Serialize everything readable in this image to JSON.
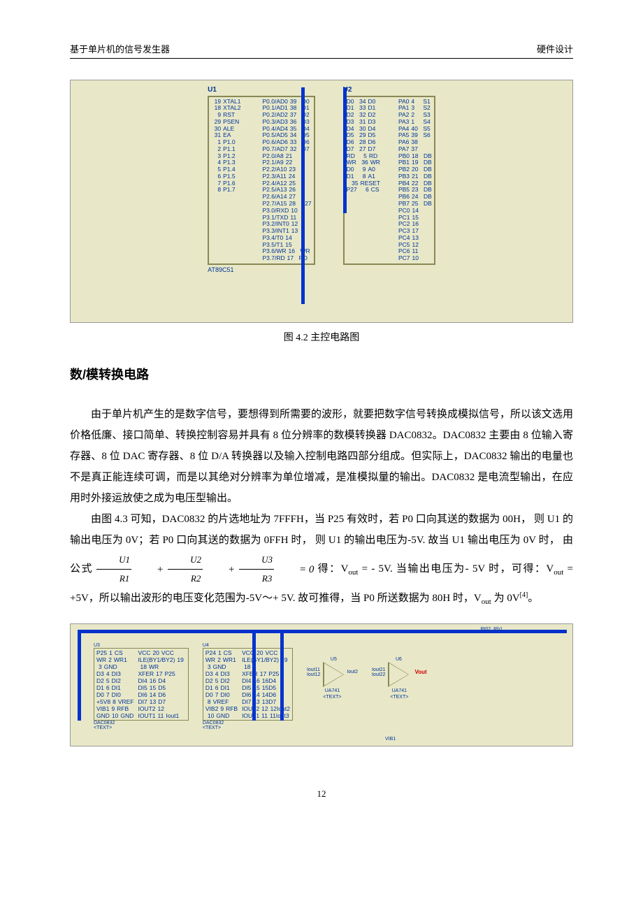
{
  "header": {
    "left": "基于单片机的信号发生器",
    "right": "硬件设计"
  },
  "schematic1": {
    "bg_color": "#e8e8c8",
    "wire_color": "#003399",
    "border_color": "#888855",
    "bus_color": "#0033cc",
    "U1": {
      "title": "U1",
      "footer": "AT89C51",
      "left": [
        {
          "num": "19",
          "name": "XTAL1",
          "ext": "X1"
        },
        {
          "num": "18",
          "name": "XTAL2",
          "ext": "<TEXT>"
        },
        {
          "num": "",
          "name": "",
          "ext": ""
        },
        {
          "num": "9",
          "name": "RST",
          "ext": "RESET"
        },
        {
          "num": "",
          "name": "",
          "ext": ""
        },
        {
          "num": "29",
          "name": "PSEN",
          "ext": ""
        },
        {
          "num": "30",
          "name": "ALE",
          "ext": ""
        },
        {
          "num": "31",
          "name": "EA",
          "ext": ""
        },
        {
          "num": "",
          "name": "",
          "ext": ""
        },
        {
          "num": "1",
          "name": "P1.0",
          "ext": ""
        },
        {
          "num": "2",
          "name": "P1.1",
          "ext": ""
        },
        {
          "num": "3",
          "name": "P1.2",
          "ext": "XT"
        },
        {
          "num": "4",
          "name": "P1.3",
          "ext": ""
        },
        {
          "num": "5",
          "name": "P1.4",
          "ext": ""
        },
        {
          "num": "6",
          "name": "P1.5",
          "ext": ""
        },
        {
          "num": "7",
          "name": "P1.6",
          "ext": ""
        },
        {
          "num": "8",
          "name": "P1.7",
          "ext": ""
        }
      ],
      "right": [
        {
          "name": "P0.0/AD0",
          "num": "39",
          "net": "D0"
        },
        {
          "name": "P0.1/AD1",
          "num": "38",
          "net": "D1"
        },
        {
          "name": "P0.2/AD2",
          "num": "37",
          "net": "D2"
        },
        {
          "name": "P0.3/AD3",
          "num": "36",
          "net": "D3"
        },
        {
          "name": "P0.4/AD4",
          "num": "35",
          "net": "D4"
        },
        {
          "name": "P0.5/AD5",
          "num": "34",
          "net": "D5"
        },
        {
          "name": "P0.6/AD6",
          "num": "33",
          "net": "D6"
        },
        {
          "name": "P0.7/AD7",
          "num": "32",
          "net": "D7"
        },
        {
          "name": "",
          "num": "",
          "net": ""
        },
        {
          "name": "P2.0/A8",
          "num": "21",
          "net": ""
        },
        {
          "name": "P2.1/A9",
          "num": "22",
          "net": ""
        },
        {
          "name": "P2.2/A10",
          "num": "23",
          "net": ""
        },
        {
          "name": "P2.3/A11",
          "num": "24",
          "net": ""
        },
        {
          "name": "P2.4/A12",
          "num": "25",
          "net": ""
        },
        {
          "name": "P2.5/A13",
          "num": "26",
          "net": ""
        },
        {
          "name": "P2.6/A14",
          "num": "27",
          "net": ""
        },
        {
          "name": "P2.7/A15",
          "num": "28",
          "net": "P27"
        },
        {
          "name": "",
          "num": "",
          "net": ""
        },
        {
          "name": "P3.0/RXD",
          "num": "10",
          "net": ""
        },
        {
          "name": "P3.1/TXD",
          "num": "11",
          "net": ""
        },
        {
          "name": "P3.2/INT0",
          "num": "12",
          "net": ""
        },
        {
          "name": "P3.3/INT1",
          "num": "13",
          "net": ""
        },
        {
          "name": "P3.4/T0",
          "num": "14",
          "net": ""
        },
        {
          "name": "P3.5/T1",
          "num": "15",
          "net": ""
        },
        {
          "name": "P3.6/WR",
          "num": "16",
          "net": "WR"
        },
        {
          "name": "P3.7/RD",
          "num": "17",
          "net": "RD"
        }
      ]
    },
    "U2": {
      "title": "U2",
      "left": [
        {
          "net": "D0",
          "num": "34",
          "name": "D0"
        },
        {
          "net": "D1",
          "num": "33",
          "name": "D1"
        },
        {
          "net": "D2",
          "num": "32",
          "name": "D2"
        },
        {
          "net": "D3",
          "num": "31",
          "name": "D3"
        },
        {
          "net": "D4",
          "num": "30",
          "name": "D4"
        },
        {
          "net": "D5",
          "num": "29",
          "name": "D5"
        },
        {
          "net": "D6",
          "num": "28",
          "name": "D6"
        },
        {
          "net": "D7",
          "num": "27",
          "name": "D7"
        },
        {
          "net": "",
          "num": "",
          "name": ""
        },
        {
          "net": "RD",
          "num": "5",
          "name": "RD"
        },
        {
          "net": "WR",
          "num": "36",
          "name": "WR"
        },
        {
          "net": "D0",
          "num": "9",
          "name": "A0"
        },
        {
          "net": "D1",
          "num": "8",
          "name": "A1"
        },
        {
          "net": "",
          "num": "35",
          "name": "RESET"
        },
        {
          "net": "",
          "num": "",
          "name": ""
        },
        {
          "net": "P27",
          "num": "6",
          "name": "CS"
        }
      ],
      "right": [
        {
          "name": "PA0",
          "num": "4",
          "net": "S1"
        },
        {
          "name": "PA1",
          "num": "3",
          "net": "S2"
        },
        {
          "name": "PA2",
          "num": "2",
          "net": "S3"
        },
        {
          "name": "PA3",
          "num": "1",
          "net": "S4"
        },
        {
          "name": "PA4",
          "num": "40",
          "net": "S5"
        },
        {
          "name": "PA5",
          "num": "39",
          "net": "S6"
        },
        {
          "name": "PA6",
          "num": "38",
          "net": ""
        },
        {
          "name": "PA7",
          "num": "37",
          "net": ""
        },
        {
          "name": "",
          "num": "",
          "net": ""
        },
        {
          "name": "PB0",
          "num": "18",
          "net": "DB"
        },
        {
          "name": "PB1",
          "num": "19",
          "net": "DB"
        },
        {
          "name": "PB2",
          "num": "20",
          "net": "DB"
        },
        {
          "name": "PB3",
          "num": "21",
          "net": "DB"
        },
        {
          "name": "PB4",
          "num": "22",
          "net": "DB"
        },
        {
          "name": "PB5",
          "num": "23",
          "net": "DB"
        },
        {
          "name": "PB6",
          "num": "24",
          "net": "DB"
        },
        {
          "name": "PB7",
          "num": "25",
          "net": "DB"
        },
        {
          "name": "",
          "num": "",
          "net": ""
        },
        {
          "name": "PC0",
          "num": "14",
          "net": ""
        },
        {
          "name": "PC1",
          "num": "15",
          "net": ""
        },
        {
          "name": "PC2",
          "num": "16",
          "net": ""
        },
        {
          "name": "PC3",
          "num": "17",
          "net": ""
        },
        {
          "name": "PC4",
          "num": "13",
          "net": ""
        },
        {
          "name": "PC5",
          "num": "12",
          "net": ""
        },
        {
          "name": "PC6",
          "num": "11",
          "net": ""
        },
        {
          "name": "PC7",
          "num": "10",
          "net": ""
        }
      ]
    }
  },
  "caption1": "图 4.2   主控电路图",
  "section_title": "数/模转换电路",
  "para1": "由于单片机产生的是数字信号，要想得到所需要的波形，就要把数字信号转换成模拟信号，所以该文选用价格低廉、接口简单、转换控制容易并具有 8 位分辨率的数模转换器 DAC0832。DAC0832 主要由 8 位输入寄存器、8 位 DAC 寄存器、8 位 D/A 转换器以及输入控制电路四部分组成。但实际上，DAC0832 输出的电量也不是真正能连续可调，而是以其绝对分辨率为单位增减，是准模拟量的输出。DAC0832 是电流型输出，在应用时外接运放使之成为电压型输出。",
  "para2_a": "由图 4.3 可知，DAC0832 的片选地址为 7FFFH，当 P25 有效时，若 P0 口向其送的数据为 00H，  则 U1  的输出电压为 0V；若 P0 口向其送的数据为 0FFH 时，  则 U1 的输出电压为-5V.  故当 U1  输出电压为 0V 时，  由公式  ",
  "para2_b": "  得：V",
  "para2_c": " = - 5V. 当输出电压为- 5V 时，可得：V",
  "para2_d": " = +5V，所以输出波形的电压变化范围为-5V～+ 5V.  故可推得，当 P0 所送数据为 80H 时，V",
  "para2_e": " 为 0V",
  "para2_f": "。",
  "formula": {
    "t1": "U1",
    "b1": "R1",
    "t2": "U2",
    "b2": "R2",
    "t3": "U3",
    "b3": "R3",
    "eq": "= 0"
  },
  "ref": "[4]",
  "schematic2": {
    "u3_title": "U3",
    "u4_title": "U4",
    "u5_title": "U5",
    "u6_title": "U6",
    "dac_footer": "DAC0832",
    "rt": "Rt02",
    "rb": "Rb1",
    "dac_left": [
      {
        "a": "P25",
        "b": "1",
        "c": "CS",
        "d": "VCC",
        "e": "20",
        "f": "VCC"
      },
      {
        "a": "WR",
        "b": "2",
        "c": "WR1",
        "d": "ILE(BY1/BY2)",
        "e": "19",
        "f": ""
      },
      {
        "a": "",
        "b": "3",
        "c": "GND",
        "d": "",
        "e": "18",
        "f": "WR"
      },
      {
        "a": "D3",
        "b": "4",
        "c": "DI3",
        "d": "XFER",
        "e": "17",
        "f": "P25"
      },
      {
        "a": "D2",
        "b": "5",
        "c": "DI2",
        "d": "DI4",
        "e": "16",
        "f": "D4"
      },
      {
        "a": "D1",
        "b": "6",
        "c": "DI1",
        "d": "DI5",
        "e": "15",
        "f": "D5"
      },
      {
        "a": "D0",
        "b": "7",
        "c": "DI0",
        "d": "DI6",
        "e": "14",
        "f": "D6"
      },
      {
        "a": "+5V8",
        "b": "8",
        "c": "VREF",
        "d": "DI7",
        "e": "13",
        "f": "D7"
      },
      {
        "a": "VIB1",
        "b": "9",
        "c": "RFB",
        "d": "IOUT2",
        "e": "12",
        "f": ""
      },
      {
        "a": "GND",
        "b": "10",
        "c": "GND",
        "d": "IOUT1",
        "e": "11",
        "f": "Iout1"
      }
    ],
    "u4_left": [
      {
        "a": "P24",
        "b": "1",
        "c": "CS",
        "d": "VCC",
        "e": "20",
        "f": "VCC"
      },
      {
        "a": "WR",
        "b": "2",
        "c": "WR1",
        "d": "ILE(BY1/BY2)",
        "e": "19",
        "f": ""
      },
      {
        "a": "",
        "b": "3",
        "c": "GND",
        "d": "",
        "e": "18",
        "f": ""
      },
      {
        "a": "D3",
        "b": "4",
        "c": "DI3",
        "d": "XFER",
        "e": "17",
        "f": "P25"
      },
      {
        "a": "D2",
        "b": "5",
        "c": "DI2",
        "d": "DI4",
        "e": "16",
        "f": "16D4"
      },
      {
        "a": "D1",
        "b": "6",
        "c": "DI1",
        "d": "DI5",
        "e": "15",
        "f": "15D5"
      },
      {
        "a": "D0",
        "b": "7",
        "c": "DI0",
        "d": "DI6",
        "e": "14",
        "f": "14D6"
      },
      {
        "a": "",
        "b": "8",
        "c": "VREF",
        "d": "DI7",
        "e": "13",
        "f": "13D7"
      },
      {
        "a": "VIB2",
        "b": "9",
        "c": "RFB",
        "d": "IOUT2",
        "e": "12",
        "f": "12Iout2"
      },
      {
        "a": "",
        "b": "10",
        "c": "GND",
        "d": "IOUT1",
        "e": "11",
        "f": "11Iout3"
      }
    ],
    "amp1_labels": {
      "in1": "Iout11",
      "in2": "Iout12",
      "out": "Iout2",
      "name": "UA741",
      "txt": "<TEXT>"
    },
    "amp2_labels": {
      "in1": "Iout21",
      "in2": "Iout22",
      "out": "Vout",
      "name": "UA741",
      "txt": "<TEXT>"
    },
    "vref": "VIB1"
  },
  "page_num": "12"
}
